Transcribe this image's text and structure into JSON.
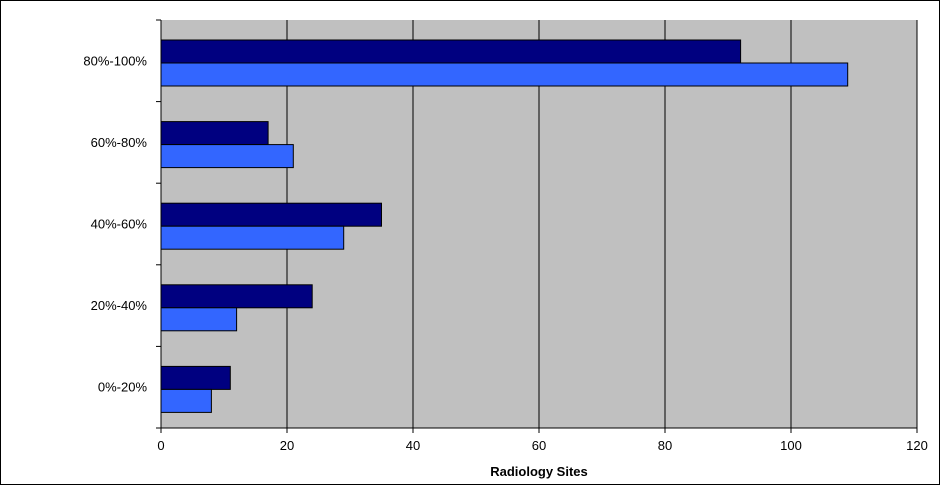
{
  "chart_data": {
    "type": "bar",
    "orientation": "horizontal",
    "title": "",
    "xlabel": "Radiology Sites",
    "ylabel": "",
    "categories": [
      "0%-20%",
      "20%-40%",
      "40%-60%",
      "60%-80%",
      "80%-100%"
    ],
    "series": [
      {
        "values": [
          11,
          24,
          35,
          17,
          92
        ],
        "color": "#000080"
      },
      {
        "values": [
          8,
          12,
          29,
          21,
          109
        ],
        "color": "#3366ff"
      }
    ],
    "xlim": [
      0,
      120
    ],
    "xticks": [
      "0",
      "20",
      "40",
      "60",
      "80",
      "100",
      "120"
    ],
    "grid": "vertical",
    "legend": "none",
    "plot_background": "#c0c0c0"
  }
}
